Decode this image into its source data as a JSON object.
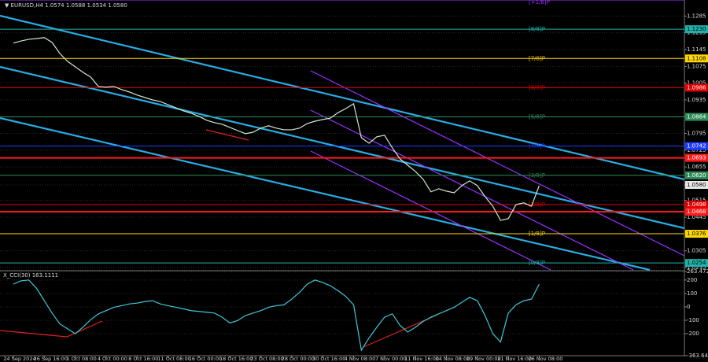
{
  "chart_data": [
    {
      "type": "line",
      "title": "▼ EURUSD,H4 1.0574 1.0588 1.0534 1.0580",
      "color": "#cfe8cf",
      "grid": true,
      "categories": [
        "24 Sep 2024",
        null,
        null,
        null,
        "26 Sep 16:00",
        null,
        null,
        null,
        "1 Oct 08:00",
        null,
        null,
        null,
        "4 Oct 00:00",
        null,
        null,
        null,
        "8 Oct 16:00",
        null,
        null,
        null,
        "11 Oct 08:00",
        null,
        null,
        null,
        "16 Oct 00:00",
        null,
        null,
        null,
        "18 Oct 16:00",
        null,
        null,
        null,
        "23 Oct 08:00",
        null,
        null,
        null,
        "28 Oct 00:00",
        null,
        null,
        null,
        "30 Oct 16:00",
        null,
        null,
        null,
        "4 Nov 08:00",
        null,
        null,
        null,
        "7 Nov 00:00",
        null,
        null,
        null,
        "11 Nov 16:00",
        null,
        null,
        null,
        "14 Nov 08:00",
        null,
        null,
        null,
        "19 Nov 00:00",
        null,
        null,
        null,
        "21 Nov 16:00",
        null,
        null,
        null,
        "26 Nov 08:00"
      ],
      "values": [
        1.1172,
        1.1181,
        1.1188,
        1.1191,
        1.1195,
        1.1175,
        1.1129,
        1.1096,
        1.1073,
        1.105,
        1.103,
        1.0991,
        1.0988,
        1.0991,
        1.0978,
        1.0968,
        1.0955,
        1.0945,
        1.0935,
        1.0928,
        1.0915,
        1.0902,
        1.0889,
        1.0879,
        1.0866,
        1.085,
        1.084,
        1.0833,
        1.082,
        1.0807,
        1.0794,
        1.08,
        1.0817,
        1.0827,
        1.0817,
        1.081,
        1.081,
        1.0817,
        1.0836,
        1.0846,
        1.0853,
        1.0859,
        1.0882,
        1.0899,
        1.0919,
        1.0777,
        1.0754,
        1.0781,
        1.0787,
        1.0735,
        1.0689,
        1.0662,
        1.0636,
        1.0603,
        1.0551,
        1.0564,
        1.0554,
        1.0547,
        1.0577,
        1.0597,
        1.0577,
        1.0531,
        1.0491,
        1.0432,
        1.0439,
        1.0498,
        1.0505,
        1.0491,
        1.0577
      ],
      "ylim": [
        1.0225,
        1.1352
      ],
      "yticks": [
        1.1285,
        1.1215,
        1.1145,
        1.1075,
        1.1005,
        1.0935,
        1.0865,
        1.0795,
        1.0725,
        1.0655,
        {
          "value": 1.058,
          "label": "1.0580"
        },
        1.0515,
        1.0445,
        1.0305,
        1.0235
      ],
      "levels": [
        {
          "value": 1.1352,
          "tag": "[+1/8]P",
          "color": "#9b30ff"
        },
        {
          "value": 1.123,
          "label": "1.1230",
          "tag": "[8/8]P",
          "color": "#20b2aa"
        },
        {
          "value": 1.1108,
          "label": "1.1108",
          "tag": "[7/8]P",
          "color": "#ffd700"
        },
        {
          "value": 1.0986,
          "label": "1.0986",
          "tag": "[6/8]P",
          "color": "#e00000"
        },
        {
          "value": 1.0864,
          "label": "1.0864",
          "tag": "[5/8]P",
          "color": "#2e8b57"
        },
        {
          "value": 1.0742,
          "label": "1.0742",
          "tag": "[4/8]P",
          "color": "#1e3cff"
        },
        {
          "value": 1.0693,
          "label": "1.0693",
          "color": "#ff1a1a"
        },
        {
          "value": 1.062,
          "label": "1.0620",
          "tag": "[3/8]P",
          "color": "#2e8b57"
        },
        {
          "value": 1.0498,
          "label": "1.0498",
          "tag": "[2/8]P",
          "color": "#e00000"
        },
        {
          "value": 1.0468,
          "label": "1.0468",
          "color": "#ff1a1a"
        },
        {
          "value": 1.0376,
          "label": "1.0376",
          "tag": "[1/8]P",
          "color": "#ffd700"
        },
        {
          "value": 1.0254,
          "label": "1.0254",
          "tag": "[0/8]P",
          "color": "#20b2aa"
        }
      ]
    },
    {
      "type": "line",
      "title": "X_CCI(30) 163.1111",
      "color": "#40c8d8",
      "values": [
        169,
        194,
        200,
        138,
        46,
        -46,
        -126,
        -163,
        -200,
        -151,
        -95,
        -52,
        -28,
        -3,
        9,
        22,
        28,
        40,
        46,
        22,
        9,
        -3,
        -15,
        -28,
        -34,
        -40,
        -46,
        -77,
        -120,
        -102,
        -65,
        -46,
        -28,
        -3,
        9,
        15,
        58,
        108,
        169,
        200,
        182,
        157,
        120,
        77,
        15,
        -323,
        -231,
        -151,
        -77,
        -52,
        -138,
        -188,
        -151,
        -108,
        -77,
        -52,
        -28,
        -3,
        34,
        71,
        46,
        -65,
        -200,
        -262,
        -46,
        15,
        46,
        58,
        169
      ],
      "ylim": [
        -363.6411,
        263.4725
      ],
      "yticks": [
        {
          "value": 263.4725,
          "label": "263.4725"
        },
        200,
        100,
        0,
        -100,
        -200,
        {
          "value": -363.6411,
          "label": "-363.6411"
        }
      ]
    }
  ]
}
